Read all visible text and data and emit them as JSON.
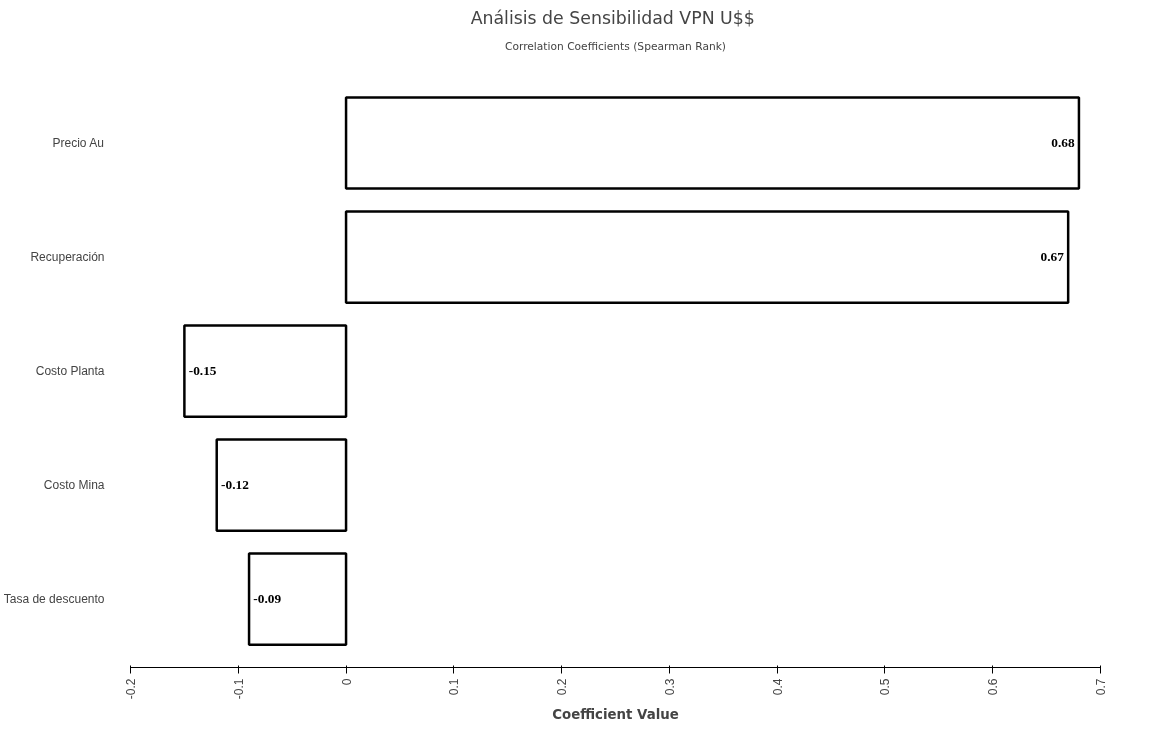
{
  "chart_data": {
    "type": "bar",
    "orientation": "horizontal",
    "title": "Análisis de Sensibilidad  VPN U$$",
    "subtitle": "Correlation Coefficients (Spearman Rank)",
    "xlabel": "Coefficient Value",
    "categories": [
      "Precio Au",
      "Recuperación",
      "Costo Planta",
      "Costo Mina",
      "Tasa de descuento"
    ],
    "values": [
      0.68,
      0.67,
      -0.15,
      -0.12,
      -0.09
    ],
    "color": "#ffffff",
    "data_labels": true,
    "xlim": [
      -0.2,
      0.7
    ],
    "xticks": [
      -0.2,
      -0.1,
      0,
      0.1,
      0.2,
      0.3,
      0.4,
      0.5,
      0.6,
      0.7
    ],
    "grid": false
  }
}
